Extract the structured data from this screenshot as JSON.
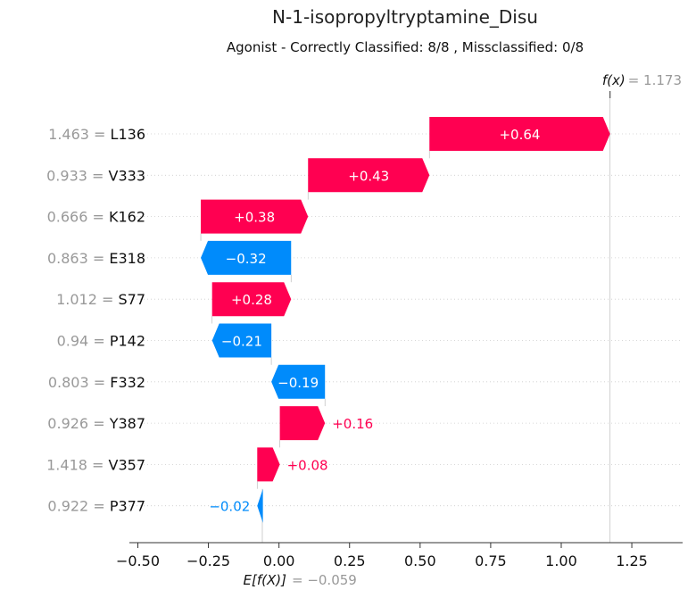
{
  "chart_data": {
    "type": "waterfall",
    "title": "N-1-isopropyltryptamine_Disu",
    "subtitle": "Agonist - Correctly Classified: 8/8 , Missclassified: 0/8",
    "fx_label": "f(x)",
    "fx_value_text": "= 1.173",
    "fx_value": 1.173,
    "ex_label": "E[f(X)]",
    "ex_value_text": "= −0.059",
    "ex_value": -0.059,
    "xlim": [
      -0.53,
      1.43
    ],
    "xticks": [
      -0.5,
      -0.25,
      0.0,
      0.25,
      0.5,
      0.75,
      1.0,
      1.25
    ],
    "xtick_labels": [
      "−0.50",
      "−0.25",
      "0.00",
      "0.25",
      "0.50",
      "0.75",
      "1.00",
      "1.25"
    ],
    "colors": {
      "positive": "#ff0051",
      "negative": "#008bfb",
      "label_gray": "#999999"
    },
    "features": [
      {
        "value": "1.463",
        "name": "L136",
        "contribution": 0.64,
        "label": "+0.64",
        "start": 0.533,
        "end": 1.173
      },
      {
        "value": "0.933",
        "name": "V333",
        "contribution": 0.43,
        "label": "+0.43",
        "start": 0.103,
        "end": 0.533
      },
      {
        "value": "0.666",
        "name": "K162",
        "contribution": 0.38,
        "label": "+0.38",
        "start": -0.277,
        "end": 0.103
      },
      {
        "value": "0.863",
        "name": "E318",
        "contribution": -0.32,
        "label": "−0.32",
        "start": 0.043,
        "end": -0.277
      },
      {
        "value": "1.012",
        "name": "S77",
        "contribution": 0.28,
        "label": "+0.28",
        "start": -0.237,
        "end": 0.043
      },
      {
        "value": "0.94",
        "name": "P142",
        "contribution": -0.21,
        "label": "−0.21",
        "start": -0.027,
        "end": -0.237
      },
      {
        "value": "0.803",
        "name": "F332",
        "contribution": -0.19,
        "label": "−0.19",
        "start": 0.163,
        "end": -0.027
      },
      {
        "value": "0.926",
        "name": "Y387",
        "contribution": 0.16,
        "label": "+0.16",
        "start": 0.003,
        "end": 0.163
      },
      {
        "value": "1.418",
        "name": "V357",
        "contribution": 0.08,
        "label": "+0.08",
        "start": -0.077,
        "end": 0.003
      },
      {
        "value": "0.922",
        "name": "P377",
        "contribution": -0.02,
        "label": "−0.02",
        "start": -0.057,
        "end": -0.077
      }
    ]
  }
}
